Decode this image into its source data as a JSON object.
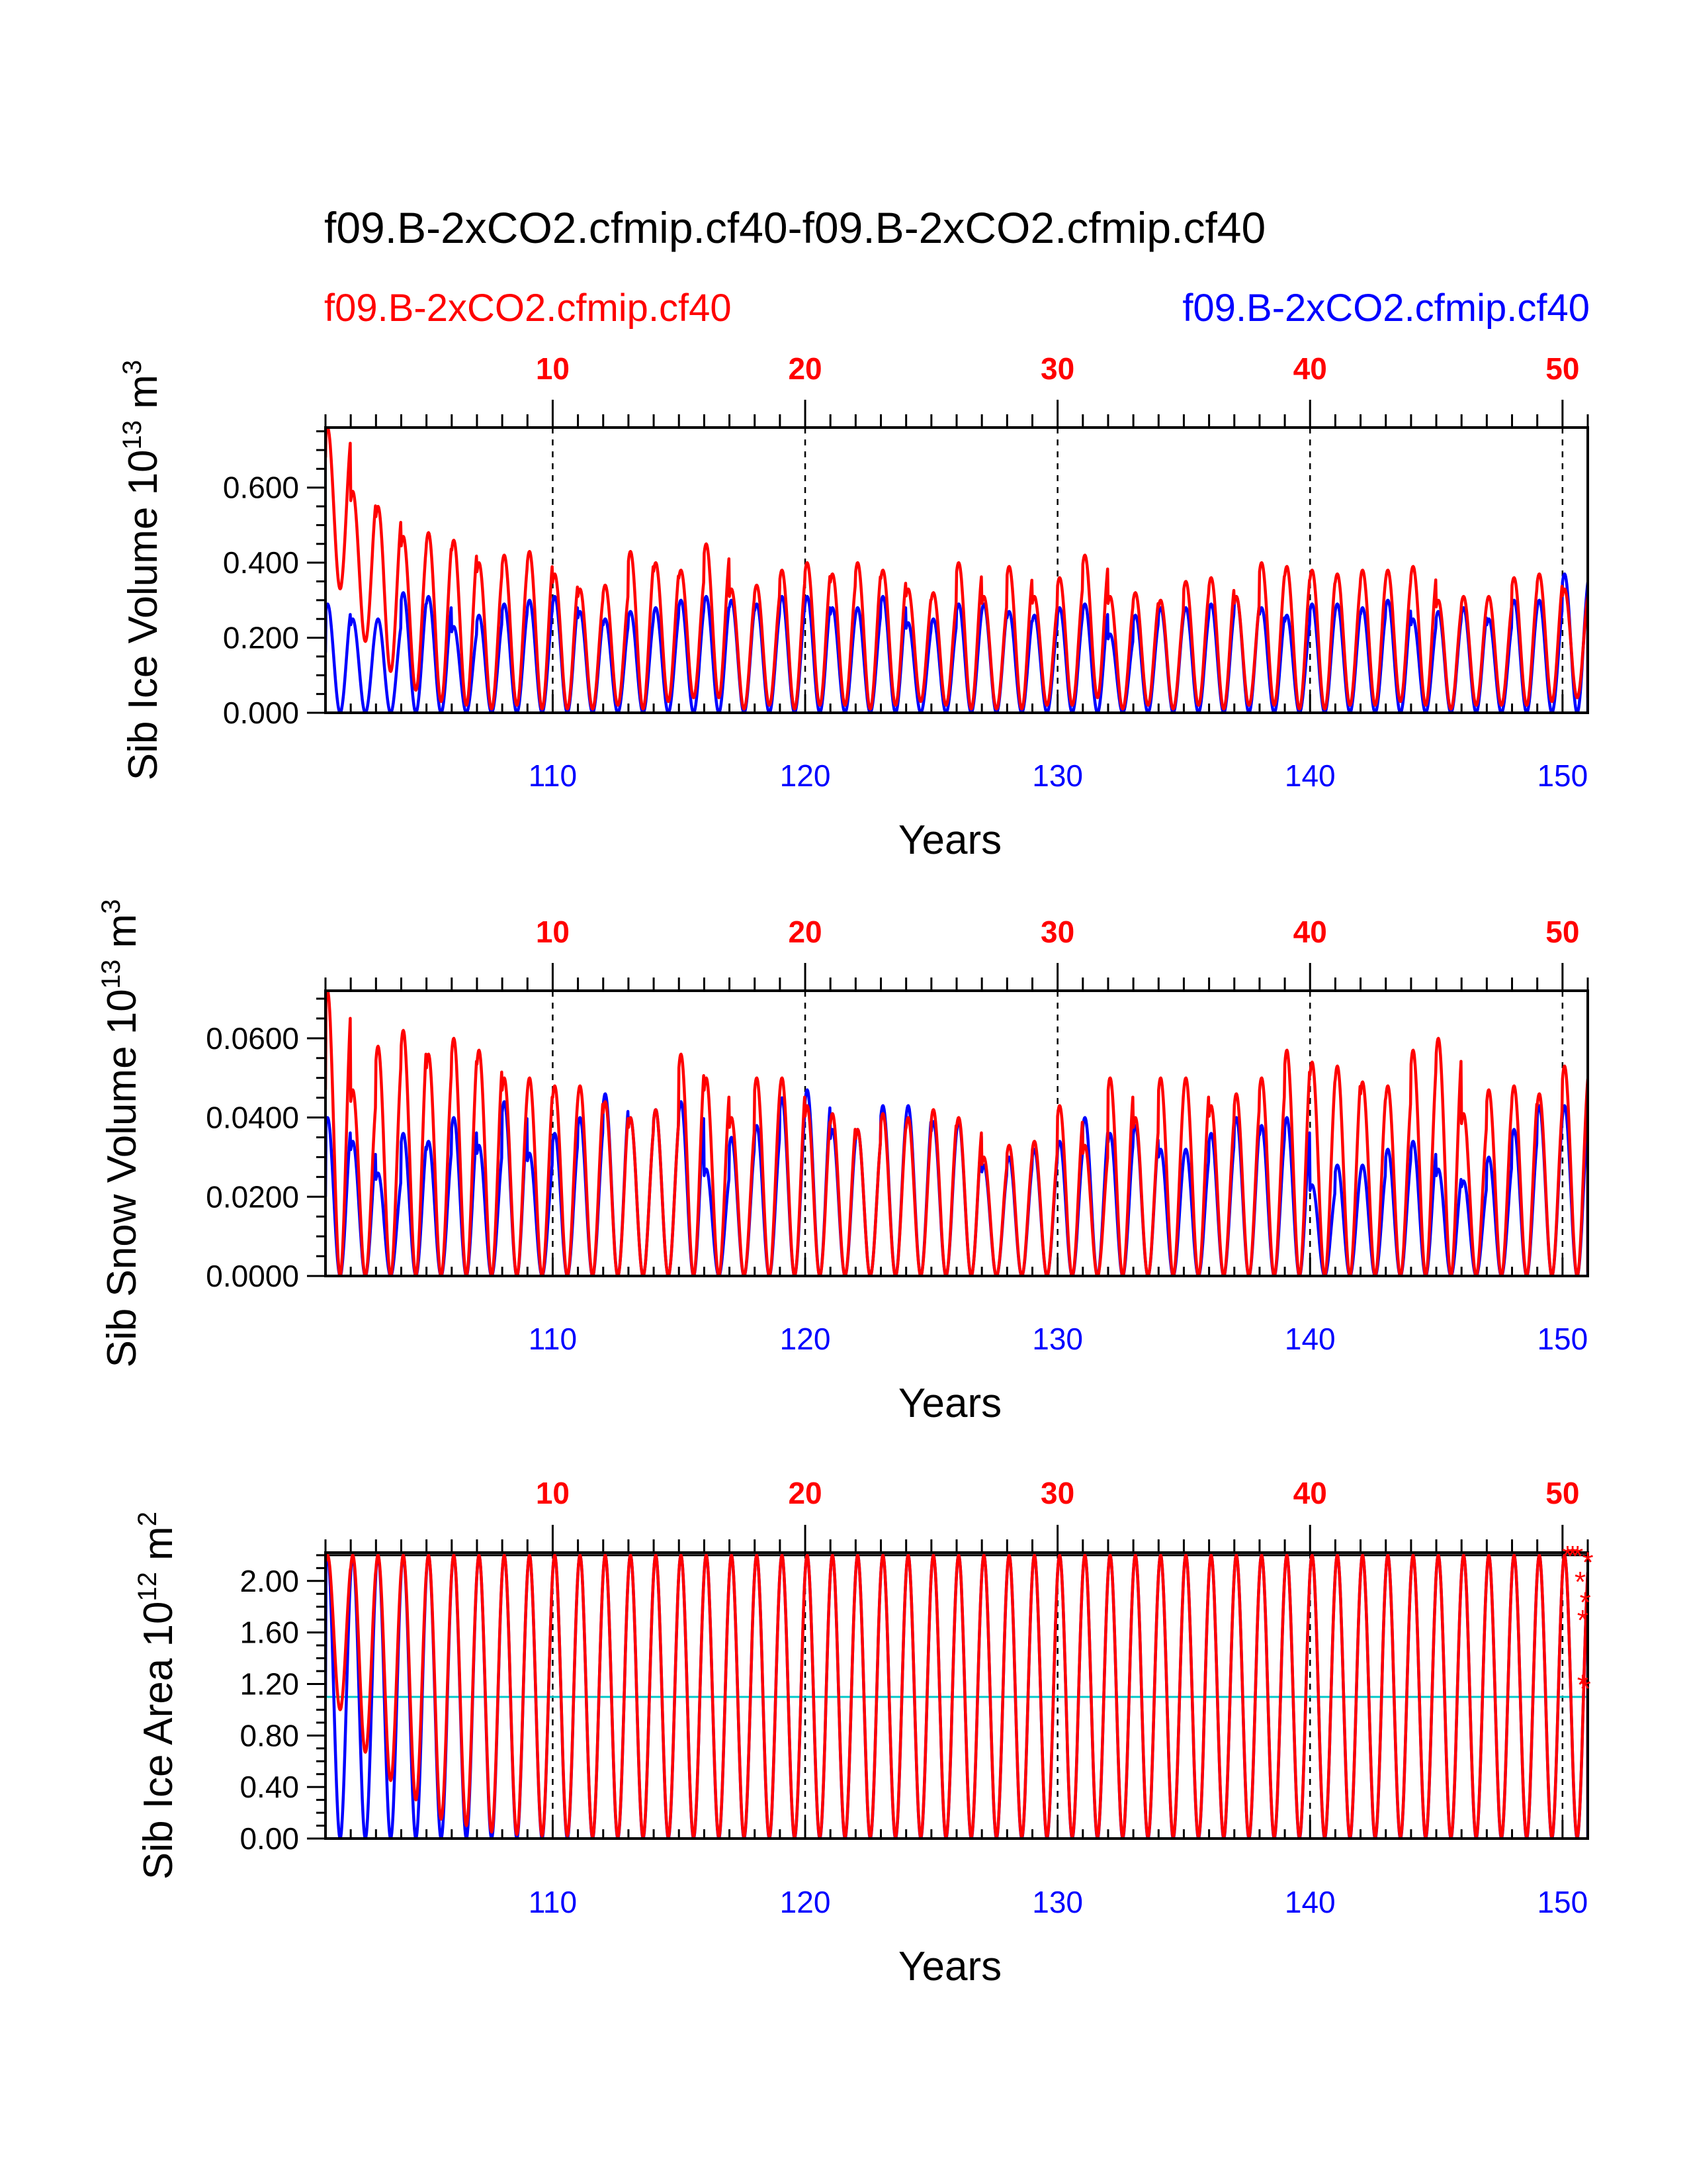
{
  "header": {
    "title": "f09.B-2xCO2.cfmip.cf40-f09.B-2xCO2.cfmip.cf40",
    "legend_left": "f09.B-2xCO2.cfmip.cf40",
    "legend_right": "f09.B-2xCO2.cfmip.cf40"
  },
  "colors": {
    "case1": "#ff0000",
    "case2": "#0000ff",
    "zero_line": "#000000",
    "max_line": "#000000",
    "half_line": "#00c8c8"
  },
  "chart_data": [
    {
      "type": "line",
      "id": "ice_volume",
      "ylabel": "Sib Ice Volume 10",
      "ylabel_sup": "13",
      "ylabel_unit": " m",
      "ylabel_unit_sup": "3",
      "xlabel": "Years",
      "xlim": [
        101,
        151
      ],
      "ylim": [
        0,
        0.76
      ],
      "yticks": [
        0,
        0.2,
        0.4,
        0.6
      ],
      "ytick_labels": [
        "0.000",
        "0.200",
        "0.400",
        "0.600"
      ],
      "yminor_step": 0.05,
      "bottom_ticks": [
        110,
        120,
        130,
        140,
        150
      ],
      "bottom_tick_labels": [
        "110",
        "120",
        "130",
        "140",
        "150"
      ],
      "top_ticks": [
        110,
        120,
        130,
        140,
        150
      ],
      "top_tick_labels": [
        "10",
        "20",
        "30",
        "40",
        "50"
      ],
      "series": [
        {
          "name": "case1",
          "color": "#ff0000",
          "peaks": [
            0.76,
            0.59,
            0.55,
            0.47,
            0.48,
            0.46,
            0.4,
            0.42,
            0.43,
            0.37,
            0.33,
            0.34,
            0.43,
            0.4,
            0.38,
            0.45,
            0.33,
            0.34,
            0.38,
            0.4,
            0.37,
            0.4,
            0.38,
            0.33,
            0.32,
            0.4,
            0.31,
            0.39,
            0.31,
            0.36,
            0.42,
            0.31,
            0.32,
            0.3,
            0.35,
            0.36,
            0.31,
            0.4,
            0.39,
            0.38,
            0.37,
            0.38,
            0.38,
            0.39,
            0.3,
            0.31,
            0.31,
            0.36,
            0.37,
            0.33
          ],
          "troughs": [
            0.33,
            0.19,
            0.11,
            0.06,
            0.03,
            0.02,
            0.01,
            0.02,
            0.01,
            0.01,
            0.01,
            0.02,
            0.01,
            0.03,
            0.04,
            0.04,
            0.01,
            0.02,
            0.01,
            0.02,
            0.02,
            0.01,
            0.02,
            0.03,
            0.02,
            0.01,
            0.01,
            0.01,
            0.02,
            0.02,
            0.04,
            0.01,
            0.02,
            0.01,
            0.02,
            0.01,
            0.02,
            0.02,
            0.01,
            0.01,
            0.02,
            0.02,
            0.03,
            0.02,
            0.01,
            0.02,
            0.02,
            0.02,
            0.03,
            0.04
          ],
          "end_values": [
            0.68,
            0.04
          ]
        },
        {
          "name": "case2",
          "color": "#0000ff",
          "peaks": [
            0.29,
            0.25,
            0.25,
            0.32,
            0.31,
            0.23,
            0.26,
            0.29,
            0.3,
            0.31,
            0.27,
            0.25,
            0.27,
            0.28,
            0.3,
            0.31,
            0.3,
            0.29,
            0.31,
            0.31,
            0.28,
            0.28,
            0.31,
            0.24,
            0.25,
            0.29,
            0.29,
            0.27,
            0.26,
            0.28,
            0.29,
            0.21,
            0.26,
            0.28,
            0.28,
            0.29,
            0.31,
            0.28,
            0.26,
            0.29,
            0.29,
            0.28,
            0.3,
            0.25,
            0.27,
            0.28,
            0.25,
            0.3,
            0.3,
            0.37
          ],
          "troughs": [
            0,
            0,
            0,
            0,
            0,
            0,
            0,
            0,
            0,
            0,
            0,
            0,
            0,
            0,
            0,
            0,
            0,
            0,
            0,
            0,
            0,
            0,
            0,
            0,
            0,
            0,
            0,
            0,
            0,
            0,
            0,
            0,
            0,
            0,
            0,
            0,
            0,
            0,
            0,
            0,
            0,
            0,
            0,
            0,
            0,
            0,
            0,
            0,
            0,
            0
          ],
          "end_values": [
            0.16,
            0.0
          ]
        }
      ]
    },
    {
      "type": "line",
      "id": "snow_volume",
      "ylabel": "Sib Snow Volume 10",
      "ylabel_sup": "13",
      "ylabel_unit": " m",
      "ylabel_unit_sup": "3",
      "xlabel": "Years",
      "xlim": [
        101,
        151
      ],
      "ylim": [
        0,
        0.072
      ],
      "yticks": [
        0,
        0.02,
        0.04,
        0.06
      ],
      "ytick_labels": [
        "0.0000",
        "0.0200",
        "0.0400",
        "0.0600"
      ],
      "yminor_step": 0.005,
      "bottom_ticks": [
        110,
        120,
        130,
        140,
        150
      ],
      "bottom_tick_labels": [
        "110",
        "120",
        "130",
        "140",
        "150"
      ],
      "top_ticks": [
        110,
        120,
        130,
        140,
        150
      ],
      "top_tick_labels": [
        "10",
        "20",
        "30",
        "40",
        "50"
      ],
      "series": [
        {
          "name": "case1",
          "color": "#ff0000",
          "peaks": [
            0.072,
            0.047,
            0.058,
            0.062,
            0.056,
            0.06,
            0.057,
            0.05,
            0.05,
            0.048,
            0.048,
            0.044,
            0.04,
            0.042,
            0.056,
            0.05,
            0.04,
            0.05,
            0.05,
            0.043,
            0.041,
            0.037,
            0.041,
            0.04,
            0.042,
            0.04,
            0.03,
            0.033,
            0.034,
            0.043,
            0.033,
            0.05,
            0.04,
            0.05,
            0.05,
            0.043,
            0.046,
            0.05,
            0.057,
            0.054,
            0.053,
            0.049,
            0.048,
            0.057,
            0.06,
            0.041,
            0.047,
            0.048,
            0.046,
            0.053
          ],
          "troughs": [
            0,
            0,
            0,
            0,
            0,
            0,
            0,
            0,
            0,
            0,
            0,
            0,
            0,
            0,
            0,
            0,
            0,
            0,
            0,
            0,
            0,
            0,
            0,
            0,
            0,
            0,
            0,
            0,
            0,
            0,
            0,
            0,
            0,
            0,
            0,
            0,
            0,
            0,
            0,
            0,
            0,
            0,
            0,
            0,
            0,
            0,
            0,
            0,
            0,
            0
          ],
          "end_values": [
            0.047,
            0.001
          ]
        },
        {
          "name": "case2",
          "color": "#0000ff",
          "peaks": [
            0.04,
            0.034,
            0.026,
            0.036,
            0.034,
            0.04,
            0.033,
            0.044,
            0.031,
            0.036,
            0.04,
            0.046,
            0.04,
            0.042,
            0.044,
            0.027,
            0.035,
            0.038,
            0.045,
            0.047,
            0.037,
            0.037,
            0.043,
            0.043,
            0.039,
            0.039,
            0.028,
            0.03,
            0.032,
            0.034,
            0.04,
            0.036,
            0.038,
            0.032,
            0.032,
            0.036,
            0.04,
            0.038,
            0.04,
            0.023,
            0.028,
            0.028,
            0.032,
            0.034,
            0.027,
            0.024,
            0.03,
            0.037,
            0.043,
            0.043
          ],
          "troughs": [
            0,
            0,
            0,
            0,
            0,
            0,
            0,
            0,
            0,
            0,
            0,
            0,
            0,
            0,
            0,
            0,
            0,
            0,
            0,
            0,
            0,
            0,
            0,
            0,
            0,
            0,
            0,
            0,
            0,
            0,
            0,
            0,
            0,
            0,
            0,
            0,
            0,
            0,
            0,
            0,
            0,
            0,
            0,
            0,
            0,
            0,
            0,
            0,
            0,
            0
          ],
          "end_values": [
            0.02,
            0.0
          ]
        }
      ]
    },
    {
      "type": "line",
      "id": "ice_area",
      "ylabel": "Sib Ice Area 10",
      "ylabel_sup": "12",
      "ylabel_unit": " m",
      "ylabel_unit_sup": "2",
      "xlabel": "Years",
      "xlim": [
        101,
        151
      ],
      "ylim": [
        0,
        2.22
      ],
      "yticks": [
        0,
        0.4,
        0.8,
        1.2,
        1.6,
        2.0
      ],
      "ytick_labels": [
        "0.00",
        "0.40",
        "0.80",
        "1.20",
        "1.60",
        "2.00"
      ],
      "yminor_step": 0.1,
      "max_line": 2.2,
      "half_line": 1.1,
      "bottom_ticks": [
        110,
        120,
        130,
        140,
        150
      ],
      "bottom_tick_labels": [
        "110",
        "120",
        "130",
        "140",
        "150"
      ],
      "top_ticks": [
        110,
        120,
        130,
        140,
        150
      ],
      "top_tick_labels": [
        "10",
        "20",
        "30",
        "40",
        "50"
      ],
      "series": [
        {
          "name": "case1",
          "color": "#ff0000",
          "peaks": [
            2.2,
            2.2,
            2.2,
            2.2,
            2.2,
            2.2,
            2.2,
            2.2,
            2.2,
            2.2,
            2.2,
            2.2,
            2.2,
            2.2,
            2.2,
            2.2,
            2.2,
            2.2,
            2.2,
            2.2,
            2.2,
            2.2,
            2.2,
            2.2,
            2.2,
            2.2,
            2.2,
            2.2,
            2.2,
            2.2,
            2.2,
            2.2,
            2.2,
            2.2,
            2.2,
            2.2,
            2.2,
            2.2,
            2.2,
            2.2,
            2.2,
            2.2,
            2.2,
            2.2,
            2.2,
            2.2,
            2.2,
            2.2,
            2.2,
            2.2
          ],
          "troughs": [
            1.0,
            0.67,
            0.45,
            0.3,
            0.15,
            0.1,
            0.05,
            0.03,
            0.02,
            0.02,
            0.01,
            0.01,
            0.01,
            0.01,
            0.01,
            0.01,
            0.01,
            0.01,
            0.01,
            0.01,
            0.01,
            0.01,
            0.01,
            0.01,
            0.01,
            0.01,
            0.01,
            0.01,
            0.01,
            0.01,
            0.01,
            0.01,
            0.01,
            0.01,
            0.01,
            0.01,
            0.01,
            0.01,
            0.01,
            0.01,
            0.01,
            0.01,
            0.01,
            0.01,
            0.01,
            0.01,
            0.01,
            0.01,
            0.01,
            0.01
          ],
          "end_values": [
            2.2,
            0.3
          ]
        },
        {
          "name": "case2",
          "color": "#0000ff",
          "peaks": [
            2.2,
            2.2,
            2.2,
            2.2,
            2.2,
            2.2,
            2.2,
            2.2,
            2.2,
            2.2,
            2.2,
            2.2,
            2.2,
            2.2,
            2.2,
            2.2,
            2.2,
            2.2,
            2.2,
            2.2,
            2.2,
            2.2,
            2.2,
            2.2,
            2.2,
            2.2,
            2.2,
            2.2,
            2.2,
            2.2,
            2.2,
            2.2,
            2.2,
            2.2,
            2.2,
            2.2,
            2.2,
            2.2,
            2.2,
            2.2,
            2.2,
            2.2,
            2.2,
            2.2,
            2.2,
            2.2,
            2.2,
            2.2,
            2.2,
            2.2
          ],
          "troughs": [
            0,
            0,
            0,
            0,
            0,
            0,
            0,
            0,
            0,
            0,
            0,
            0,
            0,
            0,
            0,
            0,
            0,
            0,
            0,
            0,
            0,
            0,
            0,
            0,
            0,
            0,
            0,
            0,
            0,
            0,
            0,
            0,
            0,
            0,
            0,
            0,
            0,
            0,
            0,
            0,
            0,
            0,
            0,
            0,
            0,
            0,
            0,
            0,
            0,
            0
          ],
          "end_values": [
            1.1,
            0.0
          ]
        }
      ],
      "markers": {
        "symbol": "*",
        "color": "#ff0000",
        "x": [
          150.2,
          150.4,
          150.6,
          150.7,
          150.8,
          150.9,
          151.0,
          150.8,
          150.9
        ],
        "y": [
          2.2,
          2.2,
          2.2,
          2.0,
          1.7,
          1.84,
          2.15,
          1.2,
          1.17
        ]
      }
    }
  ]
}
